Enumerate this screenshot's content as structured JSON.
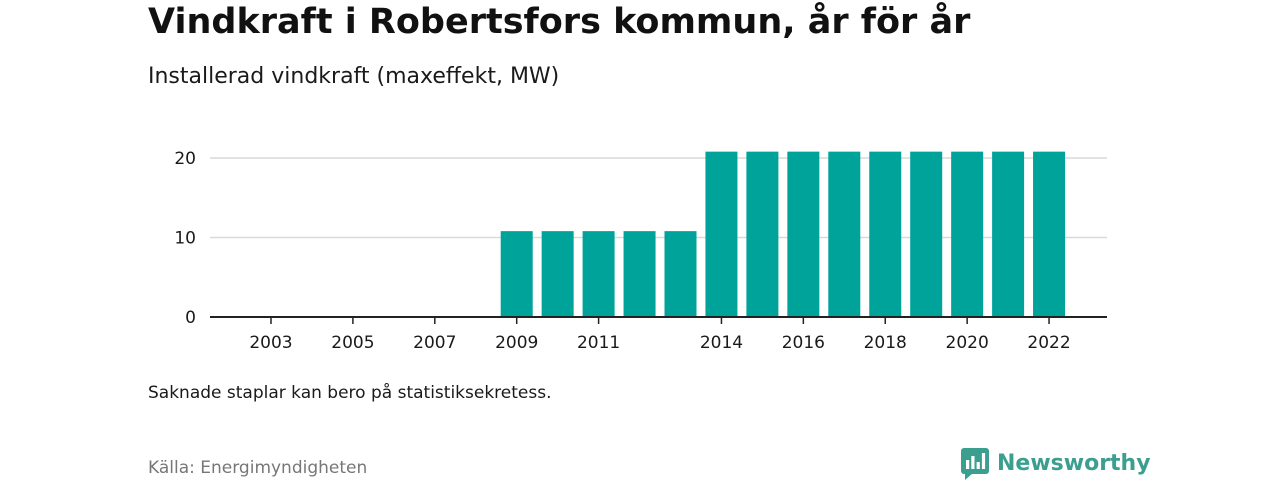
{
  "title": "Vindkraft i Robertsfors kommun, år för år",
  "subtitle": "Installerad vindkraft (maxeffekt, MW)",
  "note": "Saknade staplar kan bero på statistiksekretess.",
  "source": "Källa: Energimyndigheten",
  "brand": {
    "name": "Newsworthy",
    "logo_icon": "bar-chart-speech-bubble-icon"
  },
  "colors": {
    "bar": "#00a39a",
    "grid": "#d9d9d9",
    "axis": "#222222",
    "brand": "#3b9f8f"
  },
  "chart_data": {
    "type": "bar",
    "title": "Vindkraft i Robertsfors kommun, år för år",
    "subtitle": "Installerad vindkraft (maxeffekt, MW)",
    "categories": [
      "2002",
      "2003",
      "2004",
      "2005",
      "2006",
      "2007",
      "2008",
      "2009",
      "2010",
      "2011",
      "2012",
      "2013",
      "2014",
      "2015",
      "2016",
      "2017",
      "2018",
      "2019",
      "2020",
      "2021",
      "2022"
    ],
    "values": [
      0,
      0,
      0,
      0,
      0,
      0,
      0,
      10.8,
      10.8,
      10.8,
      10.8,
      10.8,
      20.8,
      20.8,
      20.8,
      20.8,
      20.8,
      20.8,
      20.8,
      20.8,
      20.8
    ],
    "x_tick_labels": [
      "2003",
      "2005",
      "2007",
      "2009",
      "2011",
      "2014",
      "2016",
      "2018",
      "2020",
      "2022"
    ],
    "y_ticks": [
      0,
      10,
      20
    ],
    "ylim": [
      0,
      22
    ],
    "xlabel": "",
    "ylabel": "",
    "grid": true
  }
}
